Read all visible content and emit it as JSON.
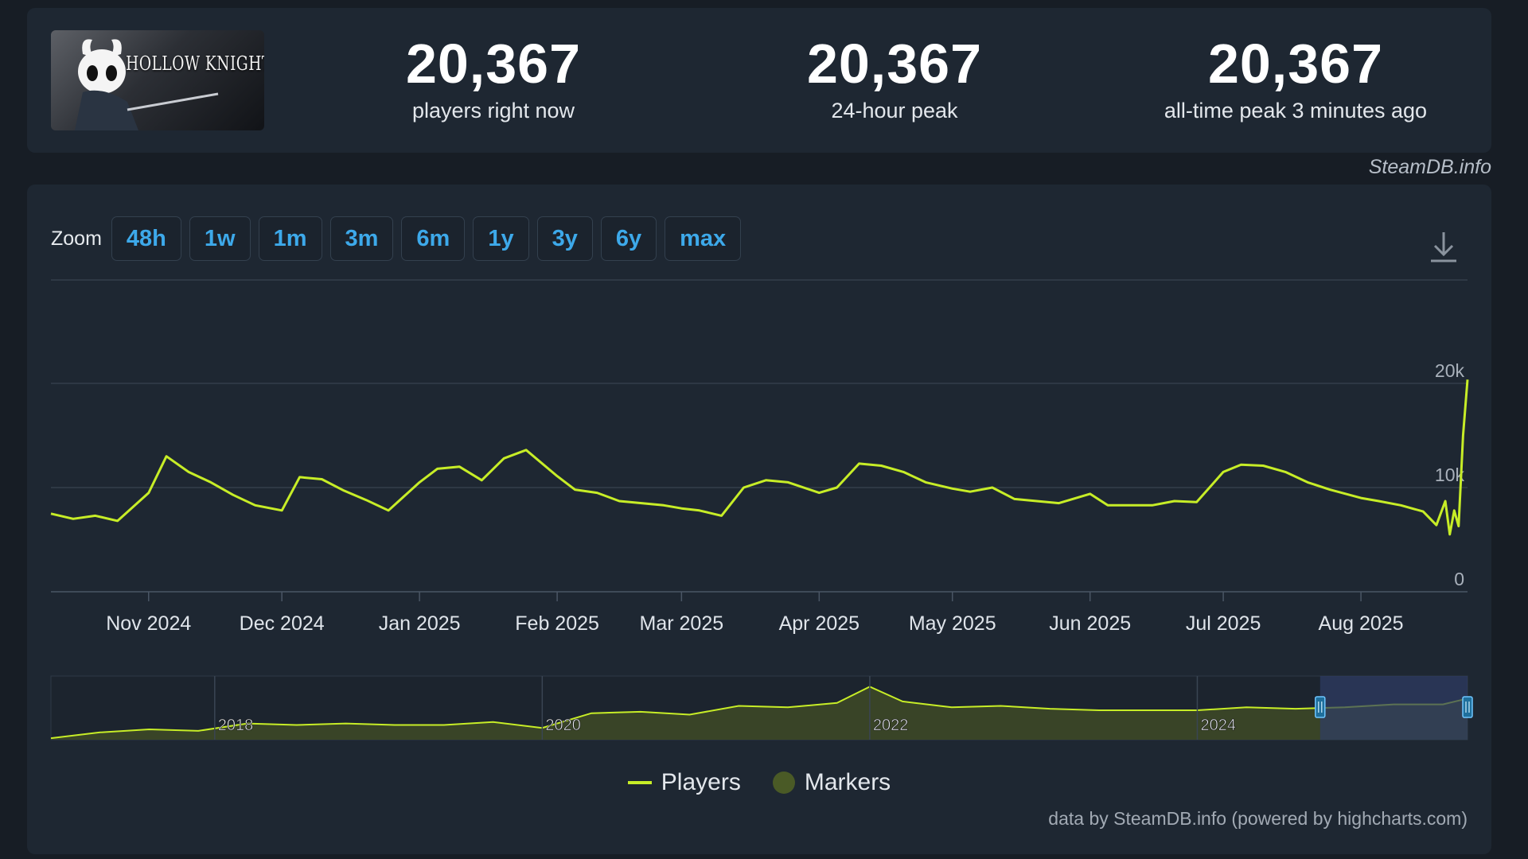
{
  "header": {
    "game_title": "HOLLOW KNIGHT",
    "stats": [
      {
        "value": "20,367",
        "label": "players right now"
      },
      {
        "value": "20,367",
        "label": "24-hour peak"
      },
      {
        "value": "20,367",
        "label": "all-time peak 3 minutes ago"
      }
    ],
    "brand": "SteamDB.info"
  },
  "toolbar": {
    "zoom_label": "Zoom",
    "zoom_options": [
      "48h",
      "1w",
      "1m",
      "3m",
      "6m",
      "1y",
      "3y",
      "6y",
      "max"
    ]
  },
  "legend": {
    "players_label": "Players",
    "markers_label": "Markers"
  },
  "credit": "data by SteamDB.info (powered by highcharts.com)",
  "colors": {
    "line": "#c7ed27",
    "accent": "#3da9ea",
    "marker": "#4a5a26",
    "navigator_selection": "#2f3d66"
  },
  "chart_data": {
    "type": "line",
    "series_name": "Players",
    "x": [
      "2024-10-10",
      "2024-10-15",
      "2024-10-20",
      "2024-10-25",
      "2024-11-01",
      "2024-11-05",
      "2024-11-10",
      "2024-11-15",
      "2024-11-20",
      "2024-11-25",
      "2024-12-01",
      "2024-12-05",
      "2024-12-10",
      "2024-12-15",
      "2024-12-20",
      "2024-12-25",
      "2025-01-01",
      "2025-01-05",
      "2025-01-10",
      "2025-01-15",
      "2025-01-20",
      "2025-01-25",
      "2025-02-01",
      "2025-02-05",
      "2025-02-10",
      "2025-02-15",
      "2025-02-20",
      "2025-02-25",
      "2025-03-01",
      "2025-03-05",
      "2025-03-10",
      "2025-03-15",
      "2025-03-20",
      "2025-03-25",
      "2025-04-01",
      "2025-04-05",
      "2025-04-10",
      "2025-04-15",
      "2025-04-20",
      "2025-04-25",
      "2025-05-01",
      "2025-05-05",
      "2025-05-10",
      "2025-05-15",
      "2025-05-20",
      "2025-05-25",
      "2025-06-01",
      "2025-06-05",
      "2025-06-10",
      "2025-06-15",
      "2025-06-20",
      "2025-06-25",
      "2025-07-01",
      "2025-07-05",
      "2025-07-10",
      "2025-07-15",
      "2025-07-20",
      "2025-07-25",
      "2025-08-01",
      "2025-08-05",
      "2025-08-10",
      "2025-08-15",
      "2025-08-18",
      "2025-08-20",
      "2025-08-21",
      "2025-08-22",
      "2025-08-23",
      "2025-08-24",
      "2025-08-25"
    ],
    "y": [
      7500,
      7000,
      7300,
      6800,
      9500,
      13000,
      11500,
      10500,
      9300,
      8300,
      7800,
      11000,
      10800,
      9700,
      8800,
      7800,
      10500,
      11800,
      12000,
      10700,
      12800,
      13600,
      11100,
      9800,
      9500,
      8700,
      8500,
      8300,
      8000,
      7800,
      7300,
      10000,
      10700,
      10500,
      9500,
      10000,
      12300,
      12100,
      11500,
      10500,
      9900,
      9600,
      10000,
      8900,
      8700,
      8500,
      9400,
      8300,
      8300,
      8300,
      8700,
      8600,
      11500,
      12200,
      12100,
      11500,
      10500,
      9800,
      9000,
      8700,
      8300,
      7700,
      6400,
      8700,
      5500,
      7800,
      6300,
      15000,
      20367
    ],
    "x_ticks": [
      "Nov 2024",
      "Dec 2024",
      "Jan 2025",
      "Feb 2025",
      "Mar 2025",
      "Apr 2025",
      "May 2025",
      "Jun 2025",
      "Jul 2025",
      "Aug 2025"
    ],
    "y_ticks": [
      "0",
      "10k",
      "20k"
    ],
    "ylim": [
      0,
      20000
    ],
    "navigator": {
      "x": [
        2017.0,
        2017.3,
        2017.6,
        2017.9,
        2018.2,
        2018.5,
        2018.8,
        2019.1,
        2019.4,
        2019.7,
        2020.0,
        2020.3,
        2020.6,
        2020.9,
        2021.2,
        2021.5,
        2021.8,
        2022.0,
        2022.2,
        2022.5,
        2022.8,
        2023.1,
        2023.4,
        2023.7,
        2024.0,
        2024.3,
        2024.6,
        2024.9,
        2025.2,
        2025.5,
        2025.65
      ],
      "y": [
        500,
        2500,
        3500,
        3000,
        5500,
        5000,
        5500,
        5000,
        5000,
        6000,
        4000,
        9000,
        9500,
        8500,
        11500,
        11000,
        12500,
        18000,
        13000,
        11000,
        11500,
        10500,
        10000,
        10000,
        10000,
        11000,
        10500,
        11000,
        12000,
        12000,
        14000
      ],
      "year_labels": [
        "2018",
        "2020",
        "2022",
        "2024"
      ],
      "selection_start": 2024.75
    },
    "grid": true,
    "legend": "bottom-center"
  }
}
